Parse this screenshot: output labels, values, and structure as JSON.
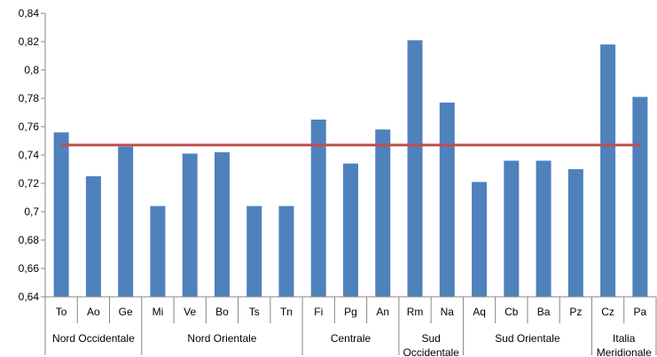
{
  "chart_data": {
    "type": "bar",
    "categories": [
      "To",
      "Ao",
      "Ge",
      "Mi",
      "Ve",
      "Bo",
      "Ts",
      "Tn",
      "Fi",
      "Pg",
      "An",
      "Rm",
      "Na",
      "Aq",
      "Cb",
      "Ba",
      "Pz",
      "Cz",
      "Pa"
    ],
    "values": [
      0.756,
      0.725,
      0.746,
      0.704,
      0.741,
      0.742,
      0.704,
      0.704,
      0.765,
      0.734,
      0.758,
      0.821,
      0.777,
      0.721,
      0.736,
      0.736,
      0.73,
      0.818,
      0.781
    ],
    "groups": [
      {
        "label": [
          "Nord Occidentale"
        ],
        "start": 0,
        "end": 2
      },
      {
        "label": [
          "Nord Orientale"
        ],
        "start": 3,
        "end": 7
      },
      {
        "label": [
          "Centrale"
        ],
        "start": 8,
        "end": 10
      },
      {
        "label": [
          "Sud",
          "Occidentale"
        ],
        "start": 11,
        "end": 12
      },
      {
        "label": [
          "Sud Orientale"
        ],
        "start": 13,
        "end": 16
      },
      {
        "label": [
          "Italia",
          "Meridionale"
        ],
        "start": 17,
        "end": 18
      }
    ],
    "reference_line": {
      "value": 0.747,
      "color": "#c0504d"
    },
    "ylim": [
      0.64,
      0.84
    ],
    "yticks": [
      "0,64",
      "0,66",
      "0,68",
      "0,7",
      "0,72",
      "0,74",
      "0,76",
      "0,78",
      "0,8",
      "0,82",
      "0,84"
    ],
    "bar_color": "#4f81bd",
    "grid": false,
    "legend": "none"
  }
}
